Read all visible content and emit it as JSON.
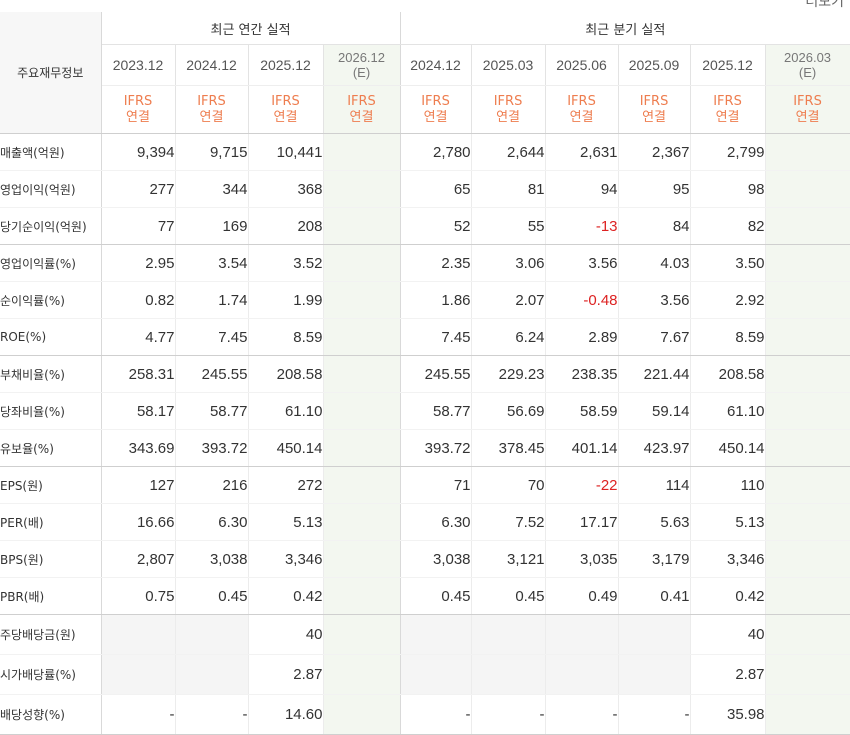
{
  "header": {
    "more_label": "더보기",
    "row_header": "주요재무정보",
    "annual_title": "최근 연간 실적",
    "quarterly_title": "최근 분기 실적",
    "annual_periods": [
      "2023.12",
      "2024.12",
      "2025.12",
      "2026.12"
    ],
    "quarterly_periods": [
      "2024.12",
      "2025.03",
      "2025.06",
      "2025.09",
      "2025.12",
      "2026.03"
    ],
    "estimate_mark": "(E)",
    "standard_top": "IFRS",
    "standard_bottom": "연결"
  },
  "rows": [
    {
      "label": "매출액(억원)",
      "values": [
        "9,394",
        "9,715",
        "10,441",
        "",
        "2,780",
        "2,644",
        "2,631",
        "2,367",
        "2,799",
        ""
      ]
    },
    {
      "label": "영업이익(억원)",
      "values": [
        "277",
        "344",
        "368",
        "",
        "65",
        "81",
        "94",
        "95",
        "98",
        ""
      ]
    },
    {
      "label": "당기순이익(억원)",
      "values": [
        "77",
        "169",
        "208",
        "",
        "52",
        "55",
        "-13",
        "84",
        "82",
        ""
      ]
    },
    {
      "label": "영업이익률(%)",
      "values": [
        "2.95",
        "3.54",
        "3.52",
        "",
        "2.35",
        "3.06",
        "3.56",
        "4.03",
        "3.50",
        ""
      ]
    },
    {
      "label": "순이익률(%)",
      "values": [
        "0.82",
        "1.74",
        "1.99",
        "",
        "1.86",
        "2.07",
        "-0.48",
        "3.56",
        "2.92",
        ""
      ]
    },
    {
      "label": "ROE(%)",
      "values": [
        "4.77",
        "7.45",
        "8.59",
        "",
        "7.45",
        "6.24",
        "2.89",
        "7.67",
        "8.59",
        ""
      ]
    },
    {
      "label": "부채비율(%)",
      "values": [
        "258.31",
        "245.55",
        "208.58",
        "",
        "245.55",
        "229.23",
        "238.35",
        "221.44",
        "208.58",
        ""
      ]
    },
    {
      "label": "당좌비율(%)",
      "values": [
        "58.17",
        "58.77",
        "61.10",
        "",
        "58.77",
        "56.69",
        "58.59",
        "59.14",
        "61.10",
        ""
      ]
    },
    {
      "label": "유보율(%)",
      "values": [
        "343.69",
        "393.72",
        "450.14",
        "",
        "393.72",
        "378.45",
        "401.14",
        "423.97",
        "450.14",
        ""
      ]
    },
    {
      "label": "EPS(원)",
      "values": [
        "127",
        "216",
        "272",
        "",
        "71",
        "70",
        "-22",
        "114",
        "110",
        ""
      ]
    },
    {
      "label": "PER(배)",
      "values": [
        "16.66",
        "6.30",
        "5.13",
        "",
        "6.30",
        "7.52",
        "17.17",
        "5.63",
        "5.13",
        ""
      ]
    },
    {
      "label": "BPS(원)",
      "values": [
        "2,807",
        "3,038",
        "3,346",
        "",
        "3,038",
        "3,121",
        "3,035",
        "3,179",
        "3,346",
        ""
      ]
    },
    {
      "label": "PBR(배)",
      "values": [
        "0.75",
        "0.45",
        "0.42",
        "",
        "0.45",
        "0.45",
        "0.49",
        "0.41",
        "0.42",
        ""
      ]
    },
    {
      "label": "주당배당금(원)",
      "values": [
        "",
        "",
        "40",
        "",
        "",
        "",
        "",
        "",
        "40",
        ""
      ]
    },
    {
      "label": "시가배당률(%)",
      "values": [
        "",
        "",
        "2.87",
        "",
        "",
        "",
        "",
        "",
        "2.87",
        ""
      ]
    },
    {
      "label": "배당성향(%)",
      "values": [
        "-",
        "-",
        "14.60",
        "",
        "-",
        "-",
        "-",
        "-",
        "35.98",
        ""
      ]
    }
  ],
  "colors": {
    "standard_text": "#ee7d4f",
    "negative_text": "#dd2222",
    "estimate_bg": "#f3f7f0",
    "blank_bg": "#f5f5f5"
  }
}
